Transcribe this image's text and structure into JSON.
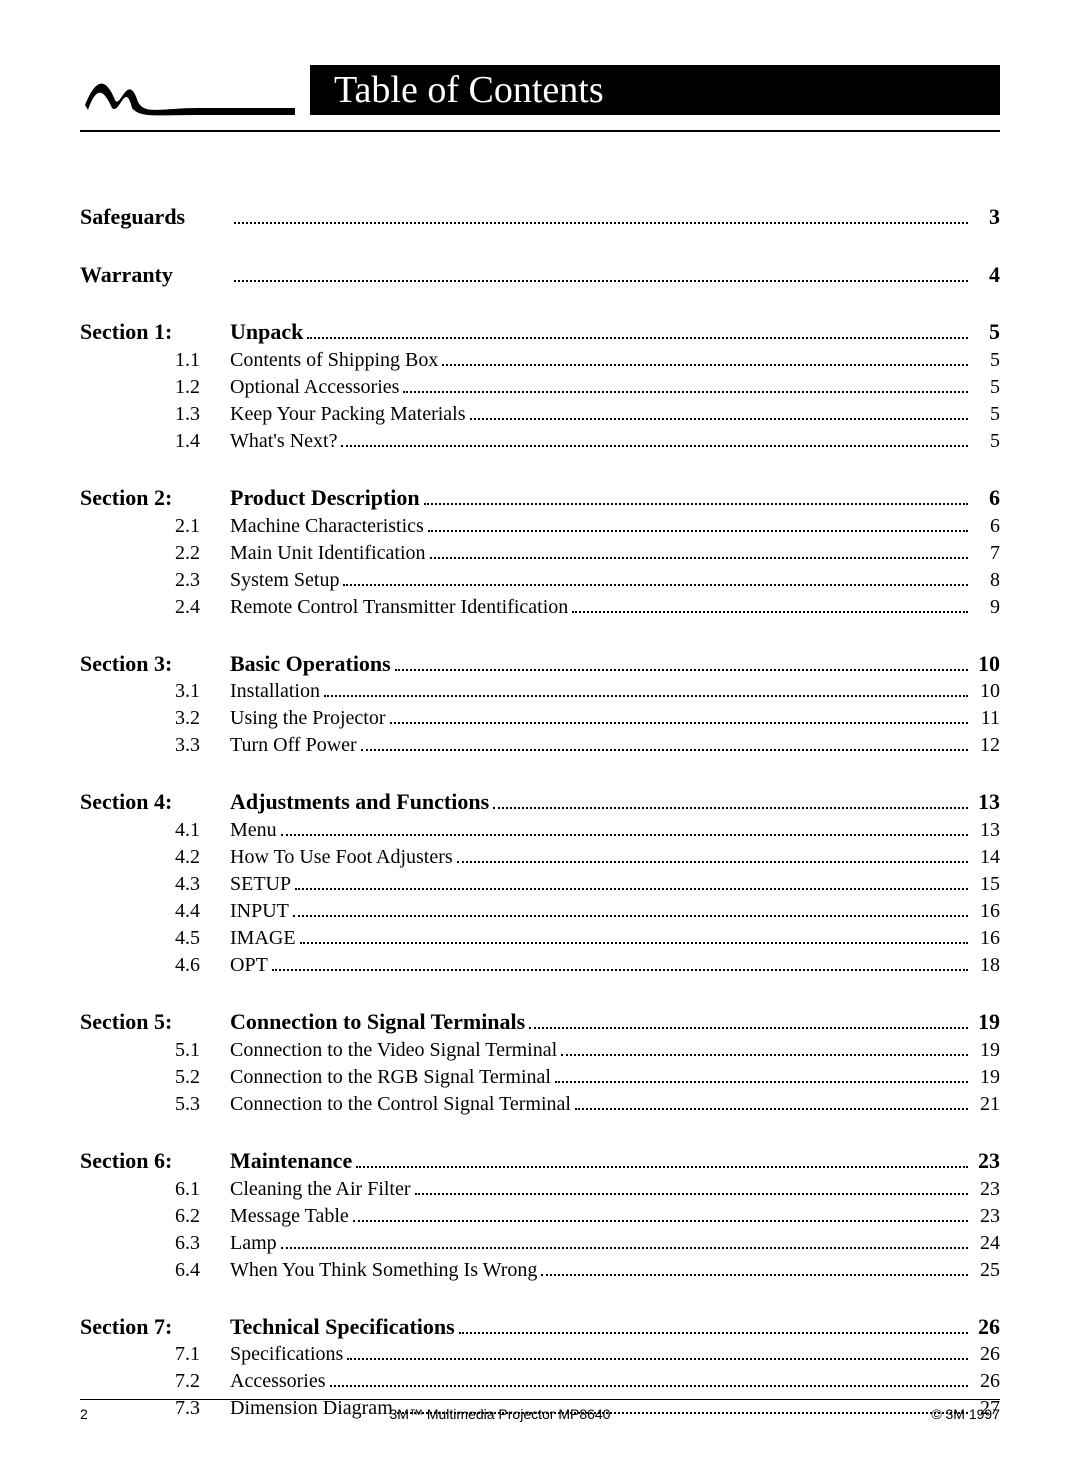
{
  "header": {
    "title": "Table of Contents"
  },
  "sections": [
    {
      "bold": true,
      "first": true,
      "label": "Safeguards",
      "title": "",
      "page": "3"
    },
    {
      "bold": true,
      "label": "Warranty",
      "title": "",
      "page": "4"
    },
    {
      "bold": true,
      "label": "Section 1:",
      "title": "Unpack",
      "page": "5"
    },
    {
      "num": "1.1",
      "title": "Contents of Shipping Box",
      "page": "5"
    },
    {
      "num": "1.2",
      "title": "Optional Accessories",
      "page": "5"
    },
    {
      "num": "1.3",
      "title": "Keep Your Packing Materials",
      "page": "5"
    },
    {
      "num": "1.4",
      "title": "What's Next?",
      "page": "5"
    },
    {
      "bold": true,
      "label": "Section 2:",
      "title": "Product Description",
      "page": "6"
    },
    {
      "num": "2.1",
      "title": "Machine Characteristics",
      "page": "6"
    },
    {
      "num": "2.2",
      "title": "Main Unit Identification",
      "page": "7"
    },
    {
      "num": "2.3",
      "title": "System Setup",
      "page": "8"
    },
    {
      "num": "2.4",
      "title": "Remote Control Transmitter Identification",
      "page": "9"
    },
    {
      "bold": true,
      "label": "Section 3:",
      "title": "Basic Operations",
      "page": "10"
    },
    {
      "num": "3.1",
      "title": "Installation",
      "page": "10"
    },
    {
      "num": "3.2",
      "title": "Using the Projector",
      "page": "11"
    },
    {
      "num": "3.3",
      "title": "Turn Off Power",
      "page": "12"
    },
    {
      "bold": true,
      "label": "Section 4:",
      "title": "Adjustments and Functions",
      "page": "13"
    },
    {
      "num": "4.1",
      "title": "Menu",
      "page": "13"
    },
    {
      "num": "4.2",
      "title": "How To Use Foot Adjusters",
      "page": "14"
    },
    {
      "num": "4.3",
      "title": "SETUP",
      "page": "15"
    },
    {
      "num": "4.4",
      "title": "INPUT",
      "page": "16"
    },
    {
      "num": "4.5",
      "title": "IMAGE",
      "page": "16"
    },
    {
      "num": "4.6",
      "title": "OPT",
      "page": "18"
    },
    {
      "bold": true,
      "label": "Section 5:",
      "title": "Connection to Signal Terminals",
      "page": "19"
    },
    {
      "num": "5.1",
      "title": "Connection to the Video Signal Terminal",
      "page": "19"
    },
    {
      "num": "5.2",
      "title": "Connection to the RGB Signal Terminal",
      "page": "19"
    },
    {
      "num": "5.3",
      "title": "Connection to the Control Signal Terminal",
      "page": "21"
    },
    {
      "bold": true,
      "label": "Section 6:",
      "title": "Maintenance",
      "page": "23"
    },
    {
      "num": "6.1",
      "title": "Cleaning the Air Filter",
      "page": "23"
    },
    {
      "num": "6.2",
      "title": "Message Table",
      "page": "23"
    },
    {
      "num": "6.3",
      "title": "Lamp",
      "page": "24"
    },
    {
      "num": "6.4",
      "title": "When You Think Something Is Wrong",
      "page": "25"
    },
    {
      "bold": true,
      "label": "Section 7:",
      "title": "Technical Specifications",
      "page": "26"
    },
    {
      "num": "7.1",
      "title": "Specifications",
      "page": "26"
    },
    {
      "num": "7.2",
      "title": "Accessories",
      "page": "26"
    },
    {
      "num": "7.3",
      "title": "Dimension Diagram",
      "page": "27"
    }
  ],
  "footer": {
    "page_num": "2",
    "center": "3M™ Multimedia Projector MP8640",
    "right": "© 3M 1997"
  }
}
